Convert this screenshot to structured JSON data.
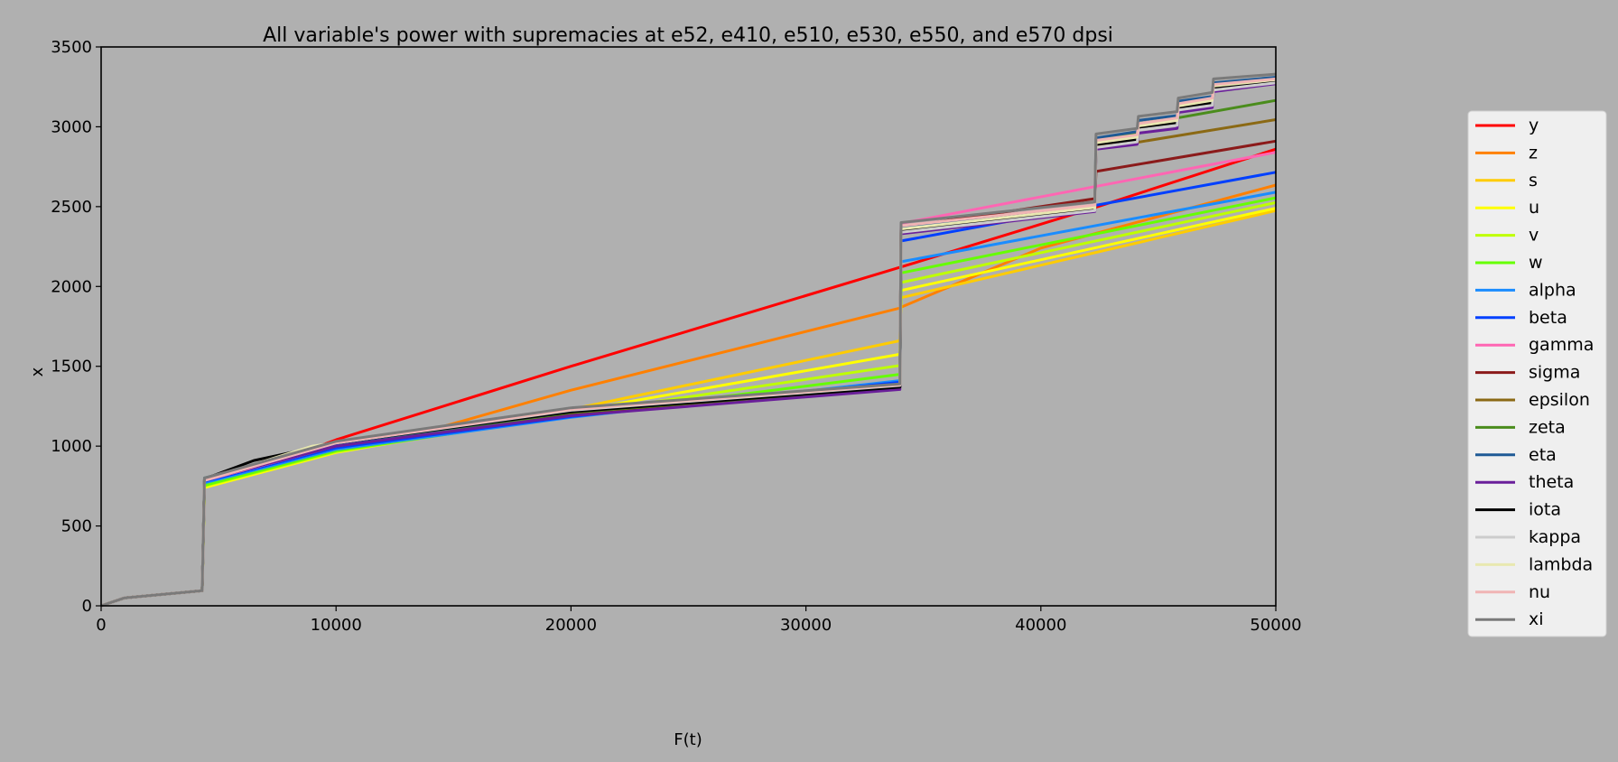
{
  "chart_data": {
    "type": "line",
    "title": "All variable's power with supremacies at e52, e410, e510, e530, e550, and e570 dpsi",
    "xlabel": "F(t)",
    "ylabel": "x",
    "xlim": [
      0,
      50000
    ],
    "ylim": [
      0,
      3500
    ],
    "xticks": [
      "0",
      "10000",
      "20000",
      "30000",
      "40000",
      "50000"
    ],
    "yticks": [
      "0",
      "500",
      "1000",
      "1500",
      "2000",
      "2500",
      "3000",
      "3500"
    ],
    "grid": false,
    "legend_position": "right outside",
    "background": "#b0b0b0",
    "series": [
      {
        "name": "y",
        "color": "#ff0000",
        "points": [
          [
            0,
            0
          ],
          [
            1000,
            50
          ],
          [
            4300,
            95
          ],
          [
            4400,
            760
          ],
          [
            8000,
            930
          ],
          [
            10000,
            1040
          ],
          [
            20000,
            1500
          ],
          [
            34000,
            2120
          ],
          [
            42000,
            2480
          ],
          [
            50000,
            2860
          ]
        ]
      },
      {
        "name": "z",
        "color": "#ff8000",
        "points": [
          [
            0,
            0
          ],
          [
            1000,
            50
          ],
          [
            4300,
            95
          ],
          [
            4400,
            770
          ],
          [
            8000,
            920
          ],
          [
            14000,
            1100
          ],
          [
            20000,
            1350
          ],
          [
            34000,
            1865
          ],
          [
            34050,
            1870
          ],
          [
            40000,
            2240
          ],
          [
            50000,
            2635
          ]
        ]
      },
      {
        "name": "s",
        "color": "#ffcc00",
        "points": [
          [
            0,
            0
          ],
          [
            1000,
            50
          ],
          [
            4300,
            95
          ],
          [
            4400,
            745
          ],
          [
            10000,
            970
          ],
          [
            20000,
            1230
          ],
          [
            34000,
            1660
          ],
          [
            34050,
            1930
          ],
          [
            50000,
            2475
          ]
        ]
      },
      {
        "name": "u",
        "color": "#ffff00",
        "points": [
          [
            0,
            0
          ],
          [
            1000,
            50
          ],
          [
            4300,
            95
          ],
          [
            4400,
            740
          ],
          [
            10000,
            960
          ],
          [
            20000,
            1215
          ],
          [
            34000,
            1575
          ],
          [
            34050,
            1975
          ],
          [
            50000,
            2490
          ]
        ]
      },
      {
        "name": "v",
        "color": "#bfff00",
        "points": [
          [
            0,
            0
          ],
          [
            1000,
            50
          ],
          [
            4300,
            95
          ],
          [
            4400,
            750
          ],
          [
            10000,
            965
          ],
          [
            20000,
            1200
          ],
          [
            34000,
            1505
          ],
          [
            34050,
            2025
          ],
          [
            50000,
            2525
          ]
        ]
      },
      {
        "name": "w",
        "color": "#66ff00",
        "points": [
          [
            0,
            0
          ],
          [
            1000,
            50
          ],
          [
            4300,
            95
          ],
          [
            4400,
            755
          ],
          [
            10000,
            970
          ],
          [
            20000,
            1190
          ],
          [
            34000,
            1450
          ],
          [
            34050,
            2085
          ],
          [
            50000,
            2555
          ]
        ]
      },
      {
        "name": "alpha",
        "color": "#1a8cff",
        "points": [
          [
            0,
            0
          ],
          [
            1000,
            50
          ],
          [
            4300,
            95
          ],
          [
            4400,
            770
          ],
          [
            10000,
            980
          ],
          [
            20000,
            1180
          ],
          [
            34000,
            1410
          ],
          [
            34050,
            2155
          ],
          [
            50000,
            2590
          ]
        ]
      },
      {
        "name": "beta",
        "color": "#0040ff",
        "points": [
          [
            0,
            0
          ],
          [
            1000,
            50
          ],
          [
            4300,
            95
          ],
          [
            4400,
            780
          ],
          [
            10000,
            990
          ],
          [
            20000,
            1185
          ],
          [
            34000,
            1400
          ],
          [
            34050,
            2285
          ],
          [
            50000,
            2715
          ]
        ]
      },
      {
        "name": "gamma",
        "color": "#ff66b3",
        "points": [
          [
            0,
            0
          ],
          [
            1000,
            50
          ],
          [
            4300,
            95
          ],
          [
            4400,
            785
          ],
          [
            10000,
            1000
          ],
          [
            20000,
            1200
          ],
          [
            34000,
            1370
          ],
          [
            34050,
            2395
          ],
          [
            50000,
            2840
          ]
        ]
      },
      {
        "name": "sigma",
        "color": "#8b1a1a",
        "points": [
          [
            0,
            0
          ],
          [
            1000,
            50
          ],
          [
            4300,
            95
          ],
          [
            4400,
            790
          ],
          [
            10000,
            1000
          ],
          [
            20000,
            1200
          ],
          [
            34000,
            1370
          ],
          [
            34050,
            2370
          ],
          [
            42300,
            2550
          ],
          [
            42350,
            2720
          ],
          [
            50000,
            2910
          ]
        ]
      },
      {
        "name": "epsilon",
        "color": "#8b6914",
        "points": [
          [
            0,
            0
          ],
          [
            1000,
            50
          ],
          [
            4300,
            95
          ],
          [
            4400,
            795
          ],
          [
            10000,
            1010
          ],
          [
            20000,
            1210
          ],
          [
            34000,
            1370
          ],
          [
            34050,
            2365
          ],
          [
            42300,
            2490
          ],
          [
            42350,
            2880
          ],
          [
            44000,
            2900
          ],
          [
            50000,
            3045
          ]
        ]
      },
      {
        "name": "zeta",
        "color": "#4a8c1c",
        "points": [
          [
            0,
            0
          ],
          [
            1000,
            50
          ],
          [
            4300,
            95
          ],
          [
            4400,
            800
          ],
          [
            10000,
            1010
          ],
          [
            20000,
            1210
          ],
          [
            34000,
            1370
          ],
          [
            34050,
            2360
          ],
          [
            42300,
            2490
          ],
          [
            42350,
            2920
          ],
          [
            44100,
            2960
          ],
          [
            44150,
            3020
          ],
          [
            45800,
            3055
          ],
          [
            50000,
            3165
          ]
        ]
      },
      {
        "name": "eta",
        "color": "#1f5a96",
        "points": [
          [
            0,
            0
          ],
          [
            1000,
            50
          ],
          [
            4300,
            95
          ],
          [
            4400,
            800
          ],
          [
            10000,
            1015
          ],
          [
            20000,
            1215
          ],
          [
            34000,
            1375
          ],
          [
            34050,
            2375
          ],
          [
            42300,
            2505
          ],
          [
            42350,
            2930
          ],
          [
            44100,
            2970
          ],
          [
            44150,
            3040
          ],
          [
            45800,
            3070
          ],
          [
            45850,
            3160
          ],
          [
            47300,
            3190
          ],
          [
            47350,
            3275
          ],
          [
            50000,
            3310
          ]
        ]
      },
      {
        "name": "theta",
        "color": "#6a1f9a",
        "points": [
          [
            0,
            0
          ],
          [
            1000,
            50
          ],
          [
            4300,
            95
          ],
          [
            4400,
            790
          ],
          [
            10000,
            1000
          ],
          [
            20000,
            1190
          ],
          [
            34000,
            1355
          ],
          [
            34050,
            2330
          ],
          [
            42300,
            2470
          ],
          [
            42350,
            2860
          ],
          [
            44100,
            2890
          ],
          [
            44150,
            2960
          ],
          [
            45800,
            2990
          ],
          [
            45850,
            3090
          ],
          [
            47300,
            3120
          ],
          [
            47350,
            3220
          ],
          [
            50000,
            3270
          ]
        ]
      },
      {
        "name": "iota",
        "color": "#000000",
        "points": [
          [
            0,
            0
          ],
          [
            1000,
            50
          ],
          [
            4300,
            95
          ],
          [
            4400,
            795
          ],
          [
            6500,
            910
          ],
          [
            10000,
            1020
          ],
          [
            20000,
            1215
          ],
          [
            34000,
            1370
          ],
          [
            34050,
            2350
          ],
          [
            42300,
            2485
          ],
          [
            42350,
            2890
          ],
          [
            44100,
            2920
          ],
          [
            44150,
            2995
          ],
          [
            45800,
            3025
          ],
          [
            45850,
            3120
          ],
          [
            47300,
            3150
          ],
          [
            47350,
            3240
          ],
          [
            50000,
            3285
          ]
        ]
      },
      {
        "name": "kappa",
        "color": "#cccccc",
        "points": [
          [
            0,
            0
          ],
          [
            1000,
            50
          ],
          [
            4300,
            95
          ],
          [
            4400,
            790
          ],
          [
            10000,
            1020
          ],
          [
            20000,
            1225
          ],
          [
            34000,
            1380
          ],
          [
            34050,
            2340
          ],
          [
            42300,
            2475
          ],
          [
            42350,
            2870
          ],
          [
            44100,
            2905
          ],
          [
            44150,
            2980
          ],
          [
            45800,
            3010
          ],
          [
            45850,
            3105
          ],
          [
            47300,
            3135
          ],
          [
            47350,
            3230
          ],
          [
            50000,
            3275
          ]
        ]
      },
      {
        "name": "lambda",
        "color": "#e8e8b0",
        "points": [
          [
            0,
            0
          ],
          [
            1000,
            50
          ],
          [
            4300,
            95
          ],
          [
            4400,
            790
          ],
          [
            9000,
            1000
          ],
          [
            20000,
            1230
          ],
          [
            34000,
            1385
          ],
          [
            34050,
            2360
          ],
          [
            42300,
            2495
          ],
          [
            42350,
            2900
          ],
          [
            44100,
            2935
          ],
          [
            44150,
            3005
          ],
          [
            45800,
            3040
          ],
          [
            45850,
            3130
          ],
          [
            47300,
            3165
          ],
          [
            47350,
            3255
          ],
          [
            50000,
            3295
          ]
        ]
      },
      {
        "name": "nu",
        "color": "#f0b4b4",
        "points": [
          [
            0,
            0
          ],
          [
            1000,
            50
          ],
          [
            4300,
            95
          ],
          [
            4400,
            785
          ],
          [
            10000,
            1020
          ],
          [
            20000,
            1230
          ],
          [
            34000,
            1385
          ],
          [
            34050,
            2380
          ],
          [
            42300,
            2510
          ],
          [
            42350,
            2915
          ],
          [
            44100,
            2950
          ],
          [
            44150,
            3020
          ],
          [
            45800,
            3055
          ],
          [
            45850,
            3145
          ],
          [
            47300,
            3180
          ],
          [
            47350,
            3265
          ],
          [
            50000,
            3300
          ]
        ]
      },
      {
        "name": "xi",
        "color": "#7a7a7a",
        "points": [
          [
            0,
            0
          ],
          [
            1000,
            50
          ],
          [
            4300,
            95
          ],
          [
            4400,
            800
          ],
          [
            10000,
            1030
          ],
          [
            20000,
            1240
          ],
          [
            34000,
            1390
          ],
          [
            34050,
            2400
          ],
          [
            42300,
            2530
          ],
          [
            42350,
            2955
          ],
          [
            44100,
            2990
          ],
          [
            44150,
            3065
          ],
          [
            45800,
            3095
          ],
          [
            45850,
            3180
          ],
          [
            47300,
            3215
          ],
          [
            47350,
            3300
          ],
          [
            50000,
            3330
          ]
        ]
      }
    ]
  }
}
